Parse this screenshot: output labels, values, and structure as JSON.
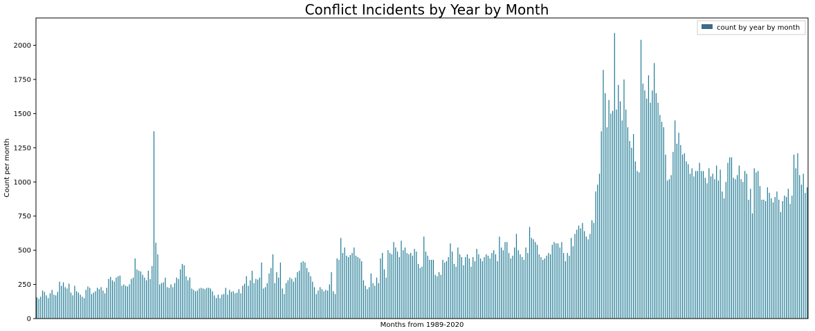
{
  "chart_data": {
    "type": "bar",
    "title": "Conflict Incidents by Year by Month",
    "xlabel": "Months from 1989-2020",
    "ylabel": "Count per month",
    "ylim": [
      0,
      2200
    ],
    "yticks": [
      0,
      250,
      500,
      750,
      1000,
      1250,
      1500,
      1750,
      2000
    ],
    "grid": false,
    "legend_position": "top-right",
    "series": [
      {
        "name": "count by year by month",
        "color": "#1f7a94",
        "values": [
          155,
          145,
          160,
          205,
          195,
          170,
          150,
          185,
          210,
          175,
          170,
          195,
          270,
          240,
          265,
          230,
          220,
          255,
          190,
          170,
          240,
          200,
          190,
          175,
          160,
          150,
          210,
          235,
          225,
          180,
          190,
          200,
          225,
          215,
          230,
          205,
          185,
          225,
          290,
          305,
          280,
          270,
          300,
          310,
          315,
          240,
          250,
          240,
          235,
          250,
          290,
          300,
          440,
          360,
          350,
          345,
          320,
          300,
          280,
          350,
          290,
          385,
          1370,
          555,
          470,
          250,
          260,
          265,
          300,
          230,
          225,
          250,
          230,
          260,
          300,
          290,
          360,
          400,
          390,
          310,
          280,
          300,
          220,
          210,
          200,
          205,
          220,
          225,
          220,
          215,
          225,
          225,
          220,
          200,
          170,
          150,
          175,
          150,
          175,
          180,
          225,
          175,
          210,
          195,
          200,
          185,
          190,
          215,
          185,
          240,
          255,
          310,
          240,
          280,
          350,
          260,
          290,
          285,
          300,
          410,
          220,
          230,
          260,
          330,
          370,
          470,
          260,
          340,
          300,
          410,
          220,
          180,
          260,
          280,
          300,
          290,
          270,
          300,
          340,
          350,
          410,
          420,
          410,
          370,
          340,
          310,
          270,
          230,
          180,
          205,
          230,
          215,
          200,
          210,
          205,
          250,
          340,
          200,
          180,
          440,
          430,
          590,
          480,
          520,
          460,
          450,
          465,
          480,
          520,
          460,
          450,
          440,
          420,
          280,
          240,
          215,
          230,
          330,
          260,
          240,
          300,
          260,
          440,
          480,
          360,
          300,
          500,
          480,
          470,
          560,
          520,
          490,
          450,
          570,
          500,
          520,
          480,
          470,
          480,
          460,
          510,
          490,
          400,
          370,
          380,
          600,
          490,
          460,
          430,
          430,
          430,
          320,
          310,
          340,
          320,
          430,
          410,
          420,
          450,
          550,
          490,
          400,
          380,
          520,
          470,
          450,
          390,
          450,
          470,
          440,
          380,
          450,
          420,
          510,
          470,
          440,
          420,
          450,
          470,
          460,
          440,
          480,
          500,
          470,
          420,
          600,
          520,
          500,
          560,
          560,
          480,
          440,
          460,
          520,
          620,
          500,
          470,
          450,
          430,
          520,
          480,
          670,
          590,
          580,
          560,
          540,
          470,
          450,
          430,
          440,
          460,
          480,
          470,
          540,
          560,
          550,
          550,
          520,
          560,
          480,
          420,
          480,
          460,
          590,
          530,
          620,
          650,
          680,
          660,
          700,
          640,
          600,
          580,
          620,
          720,
          700,
          930,
          980,
          1060,
          1370,
          1820,
          1650,
          1400,
          1600,
          1500,
          1520,
          2090,
          1530,
          1710,
          1590,
          1450,
          1750,
          1530,
          1400,
          1300,
          1250,
          1350,
          1150,
          1080,
          1070,
          2040,
          1720,
          1670,
          1610,
          1780,
          1580,
          1670,
          1870,
          1650,
          1580,
          1490,
          1440,
          1400,
          1200,
          1010,
          1020,
          1050,
          1220,
          1450,
          1280,
          1360,
          1270,
          1200,
          1210,
          1150,
          1130,
          1060,
          1100,
          1040,
          1080,
          1080,
          1140,
          1080,
          1080,
          1030,
          990,
          1100,
          1040,
          1060,
          1020,
          1120,
          1010,
          1090,
          930,
          880,
          1000,
          1140,
          1180,
          1180,
          1030,
          1020,
          1050,
          1120,
          1020,
          1000,
          1080,
          1060,
          870,
          950,
          770,
          1100,
          1070,
          1080,
          970,
          870,
          870,
          860,
          960,
          920,
          880,
          850,
          890,
          930,
          870,
          780,
          860,
          900,
          890,
          950,
          840,
          900,
          1200,
          1100,
          1210,
          1050,
          980,
          1060,
          920,
          960
        ]
      }
    ]
  }
}
